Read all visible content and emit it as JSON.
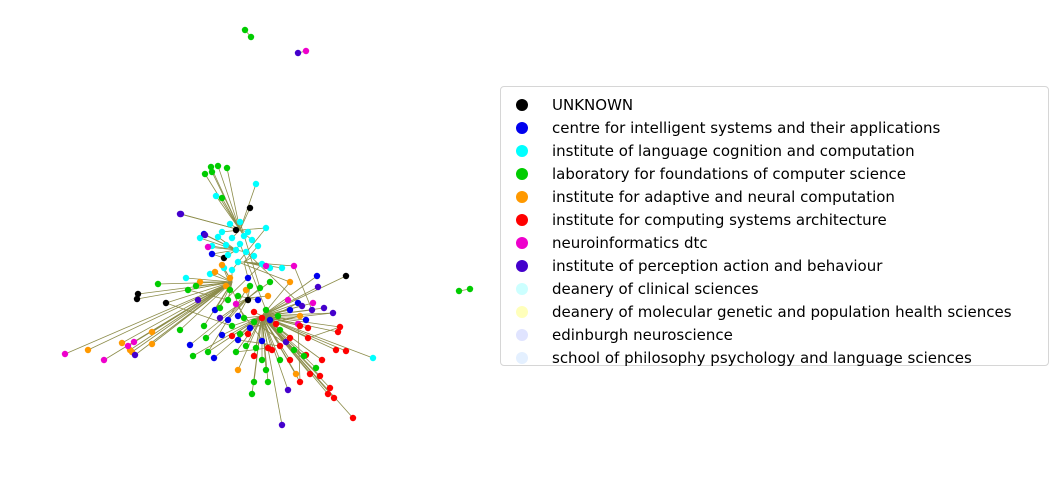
{
  "legend": {
    "items": [
      {
        "label": "UNKNOWN",
        "color": "#000000"
      },
      {
        "label": "centre for intelligent systems and their applications",
        "color": "#0000ee"
      },
      {
        "label": "institute of language cognition and computation",
        "color": "#00ffff"
      },
      {
        "label": "laboratory for foundations of computer science",
        "color": "#00cc00"
      },
      {
        "label": "institute for adaptive and neural computation",
        "color": "#ff9900"
      },
      {
        "label": "institute for computing systems architecture",
        "color": "#ff0000"
      },
      {
        "label": "neuroinformatics dtc",
        "color": "#ee00cc"
      },
      {
        "label": "institute of perception action and behaviour",
        "color": "#4400cc"
      },
      {
        "label": "deanery of clinical sciences",
        "color": "#ccffff"
      },
      {
        "label": "deanery of molecular genetic and population health sciences",
        "color": "#ffffbb"
      },
      {
        "label": "edinburgh neuroscience",
        "color": "#e0e4ff"
      },
      {
        "label": "school of philosophy psychology and language sciences",
        "color": "#e4f0ff"
      }
    ]
  },
  "edge_color": "#8c8c4a"
}
